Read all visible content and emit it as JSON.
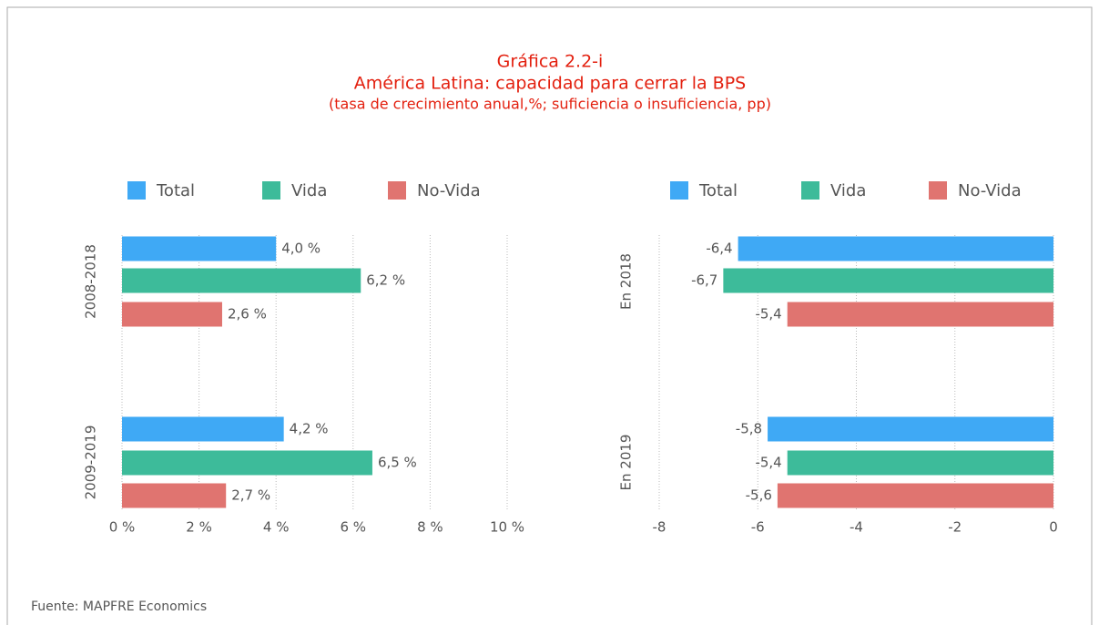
{
  "header": {
    "title": "Gráfica 2.2-i",
    "subtitle": "América Latina: capacidad para cerrar la BPS",
    "note": "(tasa de crecimiento anual,%; suficiencia o insuficiencia, pp)"
  },
  "source": "Fuente: MAPFRE Economics",
  "chart_data": [
    {
      "type": "hbar",
      "categories": [
        "2008-2018",
        "2009-2019"
      ],
      "series": [
        {
          "name": "Total",
          "color": "#3fa9f5",
          "values": [
            4.0,
            4.2
          ],
          "value_labels": [
            "4,0 %",
            "4,2 %"
          ]
        },
        {
          "name": "Vida",
          "color": "#3dbb9a",
          "values": [
            6.2,
            6.5
          ],
          "value_labels": [
            "6,2 %",
            "6,5 %"
          ]
        },
        {
          "name": "No-Vida",
          "color": "#e07470",
          "values": [
            2.6,
            2.7
          ],
          "value_labels": [
            "2,6 %",
            "2,7 %"
          ]
        }
      ],
      "xlim": [
        0,
        10
      ],
      "xticks": [
        {
          "value": 0,
          "label": "0 %"
        },
        {
          "value": 2,
          "label": "2 %"
        },
        {
          "value": 4,
          "label": "4 %"
        },
        {
          "value": 6,
          "label": "6 %"
        },
        {
          "value": 8,
          "label": "8 %"
        },
        {
          "value": 10,
          "label": "10 %"
        }
      ],
      "grid": true
    },
    {
      "type": "hbar",
      "categories": [
        "En 2018",
        "En 2019"
      ],
      "series": [
        {
          "name": "Total",
          "color": "#3fa9f5",
          "values": [
            -6.4,
            -5.8
          ],
          "value_labels": [
            "-6,4",
            "-5,8"
          ]
        },
        {
          "name": "Vida",
          "color": "#3dbb9a",
          "values": [
            -6.7,
            -5.4
          ],
          "value_labels": [
            "-6,7",
            "-5,4"
          ]
        },
        {
          "name": "No-Vida",
          "color": "#e07470",
          "values": [
            -5.4,
            -5.6
          ],
          "value_labels": [
            "-5,4",
            "-5,6"
          ]
        }
      ],
      "xlim": [
        -8,
        0
      ],
      "xticks": [
        -8,
        -6,
        -4,
        -2,
        0
      ],
      "grid": true
    }
  ]
}
